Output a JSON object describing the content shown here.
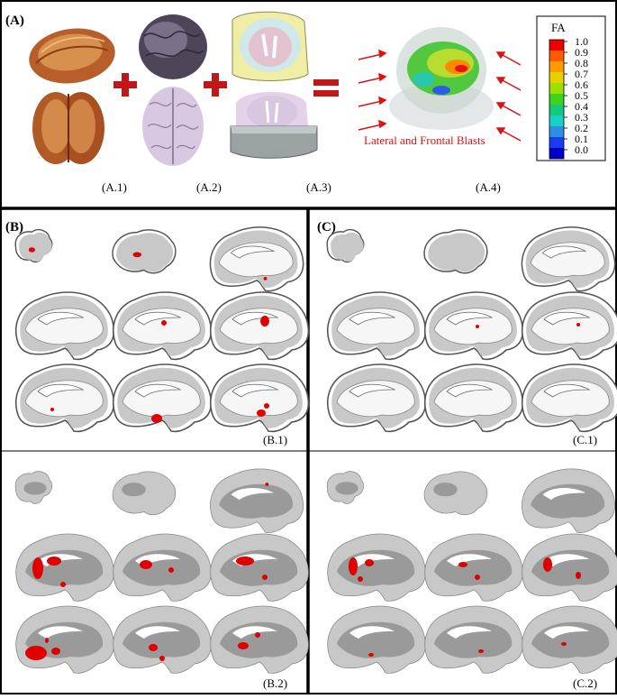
{
  "panel_a": {
    "label": "(A)",
    "sublabels": [
      "(A.1)",
      "(A.2)",
      "(A.3)",
      "(A.4)"
    ],
    "blast_text": "Lateral and Frontal Blasts",
    "colorbar": {
      "title": "FA",
      "ticks": [
        "1.0",
        "0.9",
        "0.8",
        "0.7",
        "0.6",
        "0.5",
        "0.4",
        "0.3",
        "0.2",
        "0.1",
        "0.0"
      ],
      "colors": [
        "#ee0000",
        "#ff5a00",
        "#ff9b00",
        "#e6d200",
        "#9be000",
        "#3cd21e",
        "#16c87a",
        "#18d0c8",
        "#2d8ee6",
        "#1a3cf0",
        "#0000c8"
      ]
    }
  },
  "panel_b": {
    "label": "(B)",
    "sub1": "(B.1)",
    "sub2": "(B.2)"
  },
  "panel_c": {
    "label": "(C)",
    "sub1": "(C.1)",
    "sub2": "(C.2)"
  },
  "colors": {
    "tissue": "#c8c8c8",
    "white_matter": "#9a9a9a",
    "injury": "#e00000",
    "plus": "#c01818"
  }
}
